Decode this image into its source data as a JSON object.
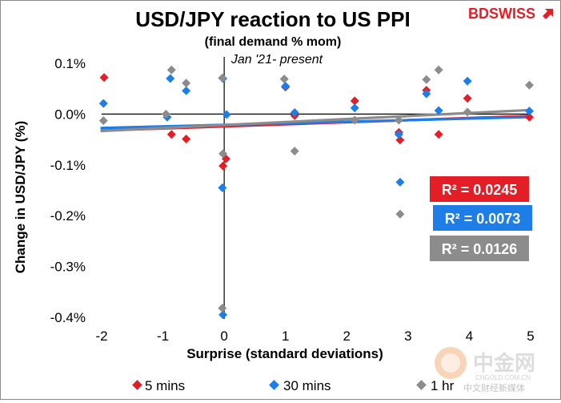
{
  "brand": {
    "name": "BDSWISS",
    "color": "#e41e26"
  },
  "watermark": {
    "main": "中金网",
    "sub": "CNGOLD.COM.CN",
    "tagline": "中文财经新媒体"
  },
  "chart_data": {
    "type": "scatter",
    "title": "USD/JPY reaction to US PPI",
    "subtitle": "(final demand % mom)",
    "period": "Jan '21- present",
    "xlabel": "Surprise (standard deviations)",
    "ylabel": "Change in USD/JPY  (%)",
    "xlim": [
      -2,
      5
    ],
    "ylim": [
      -0.4,
      0.1
    ],
    "x_ticks": [
      -2,
      -1,
      0,
      1,
      2,
      3,
      4,
      5
    ],
    "x_tick_labels": [
      "-2",
      "-1",
      "0",
      "1",
      "2",
      "3",
      "4",
      "5"
    ],
    "y_ticks": [
      0.1,
      0.0,
      -0.1,
      -0.2,
      -0.3,
      -0.4
    ],
    "y_tick_labels": [
      "0.1%",
      "0.0%",
      "-0.1%",
      "-0.2%",
      "-0.3%",
      "-0.4%"
    ],
    "legend_position": "bottom",
    "series": [
      {
        "name": "5 mins",
        "color": "#e41e26",
        "r2_label": "R² = 0.0245",
        "trend": {
          "slope": 0.0041,
          "intercept": -0.0242
        },
        "points": [
          {
            "x": -1.96,
            "y": 0.072
          },
          {
            "x": -0.86,
            "y": -0.04
          },
          {
            "x": -0.62,
            "y": -0.049
          },
          {
            "x": -0.02,
            "y": -0.102
          },
          {
            "x": 0.03,
            "y": -0.088
          },
          {
            "x": 1.0,
            "y": 0.053
          },
          {
            "x": 1.15,
            "y": -0.003
          },
          {
            "x": 2.13,
            "y": 0.026
          },
          {
            "x": 2.85,
            "y": -0.036
          },
          {
            "x": 2.87,
            "y": -0.051
          },
          {
            "x": 3.3,
            "y": 0.047
          },
          {
            "x": 3.5,
            "y": -0.04
          },
          {
            "x": 3.97,
            "y": 0.031
          },
          {
            "x": 4.98,
            "y": -0.006
          }
        ]
      },
      {
        "name": "30 mins",
        "color": "#1e7ee8",
        "r2_label": "R² = 0.0073",
        "trend": {
          "slope": 0.0031,
          "intercept": -0.0212
        },
        "points": [
          {
            "x": -1.97,
            "y": 0.021
          },
          {
            "x": -0.88,
            "y": 0.07
          },
          {
            "x": -0.93,
            "y": -0.006
          },
          {
            "x": -0.62,
            "y": 0.046
          },
          {
            "x": -0.02,
            "y": 0.07
          },
          {
            "x": 0.04,
            "y": -0.001
          },
          {
            "x": -0.03,
            "y": -0.145
          },
          {
            "x": -0.02,
            "y": -0.395
          },
          {
            "x": 1.0,
            "y": 0.055
          },
          {
            "x": 1.15,
            "y": 0.003
          },
          {
            "x": 2.13,
            "y": 0.012
          },
          {
            "x": 2.85,
            "y": -0.04
          },
          {
            "x": 2.87,
            "y": -0.134
          },
          {
            "x": 3.3,
            "y": 0.04
          },
          {
            "x": 3.5,
            "y": 0.007
          },
          {
            "x": 3.97,
            "y": 0.065
          },
          {
            "x": 4.98,
            "y": 0.006
          }
        ]
      },
      {
        "name": "1 hr",
        "color": "#8c8c8c",
        "r2_label": "R² = 0.0126",
        "trend": {
          "slope": 0.0059,
          "intercept": -0.0215
        },
        "points": [
          {
            "x": -1.97,
            "y": -0.013
          },
          {
            "x": -0.86,
            "y": 0.087
          },
          {
            "x": -0.95,
            "y": 0.0
          },
          {
            "x": -0.62,
            "y": 0.061
          },
          {
            "x": -0.03,
            "y": 0.071
          },
          {
            "x": -0.02,
            "y": -0.078
          },
          {
            "x": -0.03,
            "y": -0.382
          },
          {
            "x": 0.98,
            "y": 0.069
          },
          {
            "x": 1.15,
            "y": -0.073
          },
          {
            "x": 2.13,
            "y": -0.012
          },
          {
            "x": 2.85,
            "y": -0.012
          },
          {
            "x": 2.87,
            "y": -0.197
          },
          {
            "x": 3.3,
            "y": 0.068
          },
          {
            "x": 3.5,
            "y": 0.087
          },
          {
            "x": 3.97,
            "y": 0.004
          },
          {
            "x": 4.98,
            "y": 0.057
          }
        ]
      }
    ]
  }
}
